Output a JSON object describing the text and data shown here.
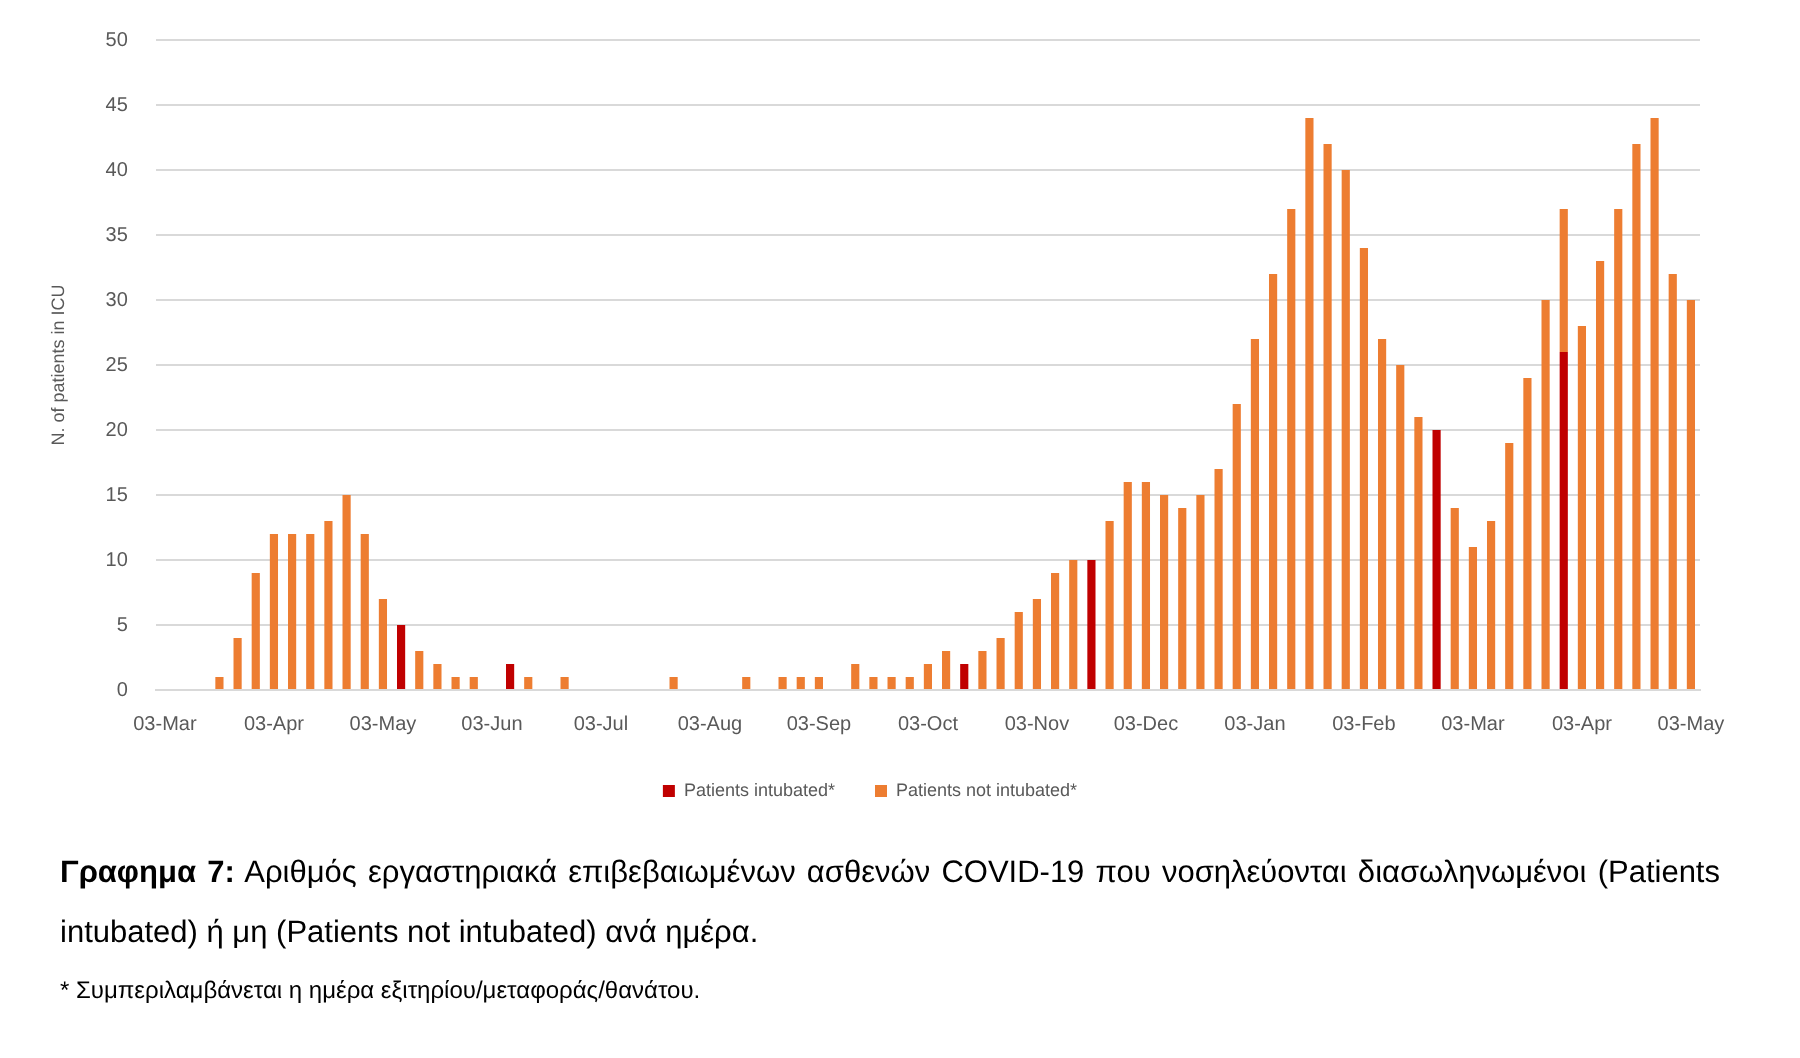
{
  "chart_data": {
    "type": "bar",
    "stacked": true,
    "ylabel": "N. of patients in ICU",
    "title": "Γραφημα 7: Αριθμός εργαστηριακά επιβεβαιωμένων ασθενών COVID-19 που νοσηλεύονται διασωληνωμένοι (Patients intubated) ή μη (Patients not intubated) ανά ημέρα.",
    "annotations": [
      "* Συμπεριλαμβάνεται η ημέρα εξιτηρίου/μεταφοράς/θανάτου."
    ],
    "categories": [
      "03-Mar",
      null,
      null,
      null,
      null,
      null,
      "03-Apr",
      null,
      null,
      null,
      null,
      null,
      "03-May",
      null,
      null,
      null,
      null,
      null,
      "03-Jun",
      null,
      null,
      null,
      null,
      null,
      "03-Jul",
      null,
      null,
      null,
      null,
      null,
      "03-Aug",
      null,
      null,
      null,
      null,
      null,
      "03-Sep",
      null,
      null,
      null,
      null,
      null,
      "03-Oct",
      null,
      null,
      null,
      null,
      null,
      "03-Nov",
      null,
      null,
      null,
      null,
      null,
      "03-Dec",
      null,
      null,
      null,
      null,
      null,
      "03-Jan",
      null,
      null,
      null,
      null,
      null,
      "03-Feb",
      null,
      null,
      null,
      null,
      null,
      "03-Mar",
      null,
      null,
      null,
      null,
      null,
      "03-Apr",
      null,
      null,
      null,
      null,
      null,
      "03-May"
    ],
    "series": [
      {
        "name": "Patients intubated*",
        "color": "#c00000",
        "values": [
          0,
          0,
          0,
          0,
          0,
          0,
          0,
          0,
          0,
          0,
          0,
          0,
          0,
          5,
          0,
          0,
          0,
          0,
          0,
          2,
          0,
          0,
          0,
          0,
          0,
          0,
          0,
          0,
          0,
          0,
          0,
          0,
          0,
          0,
          0,
          0,
          0,
          0,
          0,
          0,
          0,
          0,
          0,
          0,
          2,
          0,
          0,
          0,
          0,
          0,
          0,
          10,
          0,
          0,
          0,
          0,
          0,
          0,
          0,
          0,
          0,
          0,
          0,
          0,
          0,
          0,
          0,
          0,
          0,
          0,
          20,
          0,
          0,
          0,
          0,
          0,
          0,
          26,
          0,
          0,
          0,
          0,
          0,
          0,
          0
        ]
      },
      {
        "name": "Patients not intubated*",
        "color": "#ed7d31",
        "values": [
          0,
          0,
          0,
          1,
          4,
          9,
          12,
          12,
          12,
          13,
          15,
          12,
          7,
          0,
          3,
          2,
          1,
          1,
          0,
          0,
          1,
          0,
          1,
          0,
          0,
          0,
          0,
          0,
          1,
          0,
          0,
          0,
          1,
          0,
          1,
          1,
          1,
          0,
          2,
          1,
          1,
          1,
          2,
          3,
          0,
          3,
          4,
          6,
          7,
          9,
          10,
          0,
          13,
          16,
          16,
          15,
          14,
          15,
          17,
          22,
          27,
          32,
          37,
          44,
          42,
          40,
          34,
          27,
          25,
          21,
          0,
          14,
          11,
          13,
          19,
          24,
          30,
          11,
          28,
          33,
          37,
          42,
          44,
          32,
          30
        ]
      }
    ],
    "ylim": [
      0,
      50
    ],
    "yticks": [
      0,
      5,
      10,
      15,
      20,
      25,
      30,
      35,
      40,
      45,
      50
    ],
    "grid": "y",
    "legend": "bottom"
  }
}
